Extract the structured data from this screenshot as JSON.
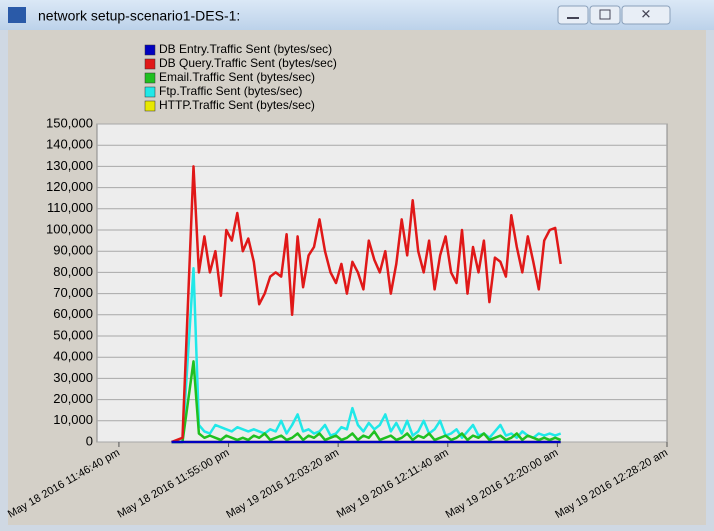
{
  "window_title": "network setup-scenario1-DES-1:",
  "chart_data": {
    "type": "line",
    "x": [
      240,
      290,
      340,
      365,
      390,
      415,
      440,
      465,
      490,
      515,
      540,
      565,
      590,
      615,
      640,
      665,
      690,
      715,
      740,
      765,
      790,
      815,
      840,
      865,
      890,
      915,
      940,
      965,
      990,
      1015,
      1040,
      1065,
      1090,
      1115,
      1140,
      1165,
      1190,
      1215,
      1240,
      1265,
      1290,
      1315,
      1340,
      1365,
      1390,
      1415,
      1440,
      1465,
      1490,
      1515,
      1540,
      1565,
      1590,
      1615,
      1640,
      1665,
      1690,
      1715,
      1740,
      1765,
      1790,
      1815,
      1840,
      1865,
      1890,
      1915,
      1940,
      1965,
      1990,
      2015
    ],
    "series": [
      {
        "name": "DB Entry.Traffic Sent (bytes/sec)",
        "color": "#0000c0",
        "values": [
          0,
          0,
          0,
          0,
          0,
          0,
          0,
          0,
          0,
          0,
          0,
          0,
          0,
          0,
          0,
          0,
          0,
          0,
          0,
          0,
          0,
          0,
          0,
          0,
          0,
          0,
          0,
          0,
          0,
          0,
          0,
          0,
          0,
          0,
          0,
          0,
          0,
          0,
          0,
          0,
          0,
          0,
          0,
          0,
          0,
          0,
          0,
          0,
          0,
          0,
          0,
          0,
          0,
          0,
          0,
          0,
          0,
          0,
          0,
          0,
          0,
          0,
          0,
          0,
          0,
          0,
          0,
          0,
          0,
          0
        ]
      },
      {
        "name": "DB Query.Traffic Sent (bytes/sec)",
        "color": "#e01818",
        "values": [
          0,
          2000,
          130000,
          80000,
          97000,
          80000,
          90000,
          69000,
          100000,
          95000,
          108000,
          90000,
          96000,
          85000,
          65000,
          70000,
          78000,
          80000,
          78000,
          98000,
          60000,
          97000,
          73000,
          88000,
          92000,
          105000,
          90000,
          80000,
          75000,
          84000,
          70000,
          85000,
          80000,
          72000,
          95000,
          86000,
          80000,
          90000,
          70000,
          84000,
          105000,
          88000,
          114000,
          90000,
          80000,
          95000,
          72000,
          88000,
          97000,
          80000,
          75000,
          100000,
          70000,
          92000,
          80000,
          95000,
          66000,
          87000,
          85000,
          78000,
          107000,
          92000,
          80000,
          97000,
          85000,
          72000,
          95000,
          100000,
          101000,
          84000
        ]
      },
      {
        "name": "Email.Traffic Sent (bytes/sec)",
        "color": "#20c020",
        "values": [
          0,
          0,
          38000,
          4000,
          2000,
          3000,
          2000,
          1000,
          3000,
          2000,
          1000,
          2000,
          1000,
          3000,
          2000,
          4000,
          1000,
          2000,
          3000,
          1000,
          2000,
          4000,
          1000,
          3000,
          2000,
          4000,
          1000,
          2000,
          3000,
          1000,
          2000,
          4000,
          1000,
          3000,
          2000,
          5000,
          1000,
          2000,
          3000,
          1000,
          2000,
          4000,
          1000,
          3000,
          2000,
          4000,
          1000,
          2000,
          3000,
          1000,
          2000,
          4000,
          1000,
          3000,
          2000,
          4000,
          1000,
          2000,
          3000,
          1000,
          2000,
          4000,
          1000,
          3000,
          2000,
          1000,
          2000,
          1000,
          2000,
          1000
        ]
      },
      {
        "name": "Ftp.Traffic Sent (bytes/sec)",
        "color": "#20e8e8",
        "values": [
          0,
          0,
          82000,
          8000,
          5000,
          4000,
          8000,
          7000,
          6000,
          5000,
          7000,
          6000,
          5000,
          6000,
          5000,
          4000,
          6000,
          5000,
          10000,
          4000,
          8000,
          13000,
          5000,
          6000,
          4000,
          5000,
          8000,
          3000,
          4000,
          7000,
          6000,
          16000,
          8000,
          5000,
          9000,
          6000,
          8000,
          13000,
          5000,
          9000,
          4000,
          10000,
          3000,
          5000,
          10000,
          4000,
          6000,
          10000,
          3000,
          4000,
          6000,
          2000,
          5000,
          8000,
          3000,
          4000,
          2000,
          5000,
          8000,
          3000,
          4000,
          2000,
          5000,
          3000,
          2000,
          4000,
          3000,
          4000,
          3000,
          4000
        ]
      },
      {
        "name": "HTTP.Traffic Sent (bytes/sec)",
        "color": "#e8e800",
        "values": [
          0,
          0,
          0,
          0,
          0,
          0,
          0,
          0,
          0,
          0,
          0,
          0,
          0,
          0,
          0,
          0,
          0,
          0,
          0,
          0,
          0,
          0,
          0,
          0,
          0,
          0,
          0,
          0,
          0,
          0,
          0,
          0,
          0,
          0,
          0,
          0,
          0,
          0,
          0,
          0,
          0,
          0,
          0,
          0,
          0,
          0,
          0,
          0,
          0,
          0,
          0,
          0,
          0,
          0,
          0,
          0,
          0,
          0,
          0,
          0,
          0,
          0,
          0,
          0,
          0,
          0,
          0,
          0,
          0,
          0
        ]
      }
    ],
    "xlim": [
      -100,
      2500
    ],
    "xticks": [
      {
        "value": 0,
        "label": "May 18 2016 11:46:40 pm"
      },
      {
        "value": 500,
        "label": "May 18 2016 11:55:00 pm"
      },
      {
        "value": 1000,
        "label": "May 19 2016 12:03:20 am"
      },
      {
        "value": 1500,
        "label": "May 19 2016 12:11:40 am"
      },
      {
        "value": 2000,
        "label": "May 19 2016 12:20:00 am"
      },
      {
        "value": 2500,
        "label": "May 19 2016 12:28:20 am"
      }
    ],
    "ylim": [
      0,
      150000
    ],
    "yticks": [
      0,
      {
        "value": 10000,
        "label": "10,000"
      },
      {
        "value": 20000,
        "label": "20,000"
      },
      {
        "value": 30000,
        "label": "30,000"
      },
      {
        "value": 40000,
        "label": "40,000"
      },
      {
        "value": 50000,
        "label": "50,000"
      },
      {
        "value": 60000,
        "label": "60,000"
      },
      {
        "value": 70000,
        "label": "70,000"
      },
      {
        "value": 80000,
        "label": "80,000"
      },
      {
        "value": 90000,
        "label": "90,000"
      },
      {
        "value": 100000,
        "label": "100,000"
      },
      {
        "value": 110000,
        "label": "110,000"
      },
      {
        "value": 120000,
        "label": "120,000"
      },
      {
        "value": 130000,
        "label": "130,000"
      },
      {
        "value": 140000,
        "label": "140,000"
      },
      {
        "value": 150000,
        "label": "150,000"
      }
    ],
    "grid": true
  }
}
